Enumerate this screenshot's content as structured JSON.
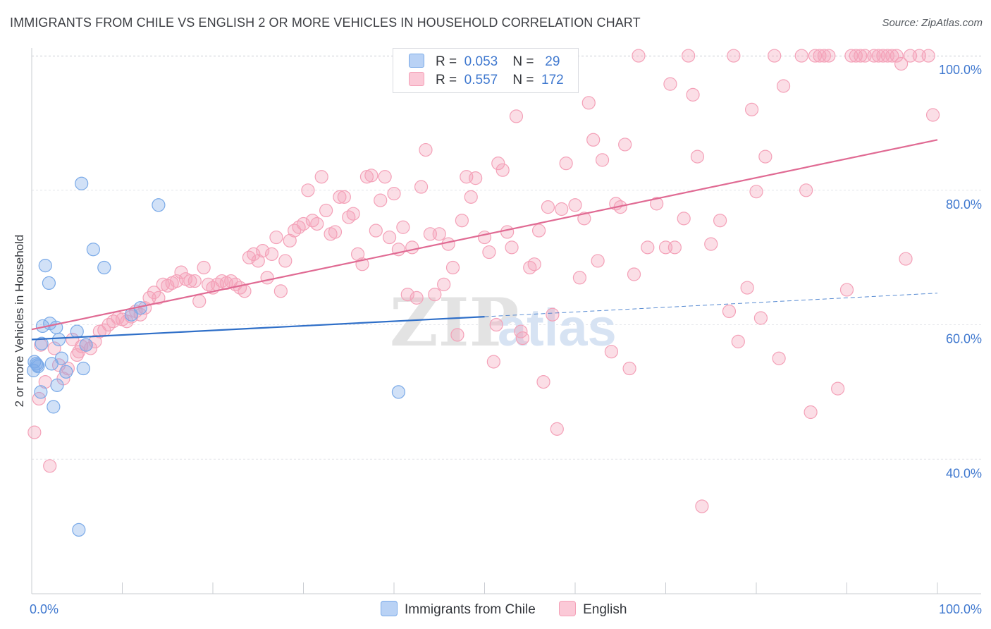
{
  "title": "IMMIGRANTS FROM CHILE VS ENGLISH 2 OR MORE VEHICLES IN HOUSEHOLD CORRELATION CHART",
  "source": "Source: ZipAtlas.com",
  "watermark": {
    "zip": "ZIP",
    "atlas": "atlas"
  },
  "legend_top": [
    {
      "r_label": "R =",
      "r_value": "0.053",
      "n_label": "N =",
      "n_value": "29"
    },
    {
      "r_label": "R =",
      "r_value": "0.557",
      "n_label": "N =",
      "n_value": "172"
    }
  ],
  "chart_data": {
    "type": "scatter",
    "xlabel": "",
    "ylabel": "2 or more Vehicles in Household",
    "xlim": [
      0,
      100
    ],
    "ylim": [
      20,
      102
    ],
    "x_tick_labels": [
      "0.0%",
      "100.0%"
    ],
    "y_ticks": [
      40,
      60,
      80,
      100
    ],
    "y_tick_labels": [
      "40.0%",
      "60.0%",
      "80.0%",
      "100.0%"
    ],
    "grid": true,
    "colors": {
      "chile": "#7aaae8",
      "english": "#f4a1b8",
      "chile_line": "#2f6fc8",
      "english_line": "#e06a93",
      "tick_label": "#3f78cf"
    },
    "series": [
      {
        "name": "Immigrants from Chile",
        "trend": {
          "x0": 0,
          "y0": 57.8,
          "x1": 50,
          "y1": 61.2,
          "dash_to_x": 100,
          "dash_to_y": 64.7
        },
        "points": [
          [
            0.2,
            53.2
          ],
          [
            0.3,
            54.5
          ],
          [
            0.5,
            54.2
          ],
          [
            0.6,
            54.0
          ],
          [
            0.7,
            53.8
          ],
          [
            1.0,
            50.0
          ],
          [
            1.1,
            57.2
          ],
          [
            1.2,
            59.8
          ],
          [
            1.5,
            68.8
          ],
          [
            1.9,
            66.2
          ],
          [
            2.0,
            60.2
          ],
          [
            2.2,
            54.2
          ],
          [
            2.4,
            47.8
          ],
          [
            2.7,
            59.6
          ],
          [
            2.8,
            51.0
          ],
          [
            3.0,
            57.8
          ],
          [
            3.3,
            55.0
          ],
          [
            3.8,
            53.0
          ],
          [
            5.0,
            59.0
          ],
          [
            5.2,
            29.5
          ],
          [
            5.5,
            81.0
          ],
          [
            5.7,
            53.5
          ],
          [
            6.0,
            57.0
          ],
          [
            6.8,
            71.2
          ],
          [
            8.0,
            68.5
          ],
          [
            11.0,
            61.5
          ],
          [
            12.0,
            62.5
          ],
          [
            14.0,
            77.8
          ],
          [
            40.5,
            50.0
          ]
        ]
      },
      {
        "name": "English",
        "trend": {
          "x0": 0,
          "y0": 59.3,
          "x1": 100,
          "y1": 87.5
        },
        "points": [
          [
            0.3,
            44.0
          ],
          [
            0.8,
            49.0
          ],
          [
            1.0,
            57.0
          ],
          [
            1.5,
            51.5
          ],
          [
            2.0,
            39.0
          ],
          [
            2.5,
            56.5
          ],
          [
            3.0,
            54.0
          ],
          [
            3.5,
            52.0
          ],
          [
            4.0,
            53.5
          ],
          [
            4.5,
            57.8
          ],
          [
            5.0,
            55.5
          ],
          [
            5.2,
            56.0
          ],
          [
            5.5,
            56.8
          ],
          [
            6.0,
            57.0
          ],
          [
            6.5,
            56.5
          ],
          [
            7.0,
            57.5
          ],
          [
            7.5,
            59.0
          ],
          [
            8.0,
            59.2
          ],
          [
            8.5,
            60.0
          ],
          [
            9.0,
            60.5
          ],
          [
            9.5,
            61.0
          ],
          [
            10.0,
            60.8
          ],
          [
            10.5,
            60.5
          ],
          [
            11.0,
            61.2
          ],
          [
            11.5,
            62.0
          ],
          [
            12.0,
            61.5
          ],
          [
            12.5,
            62.5
          ],
          [
            13.0,
            64.0
          ],
          [
            13.5,
            64.8
          ],
          [
            14.0,
            64.0
          ],
          [
            14.5,
            66.0
          ],
          [
            15.0,
            65.8
          ],
          [
            15.5,
            66.2
          ],
          [
            16.0,
            66.5
          ],
          [
            16.5,
            67.8
          ],
          [
            17.0,
            66.8
          ],
          [
            17.5,
            66.5
          ],
          [
            18.0,
            66.5
          ],
          [
            18.5,
            63.5
          ],
          [
            19.0,
            68.5
          ],
          [
            19.5,
            66.0
          ],
          [
            20.0,
            65.5
          ],
          [
            20.5,
            66.0
          ],
          [
            21.0,
            66.5
          ],
          [
            21.5,
            66.2
          ],
          [
            22.0,
            66.5
          ],
          [
            22.5,
            66.0
          ],
          [
            23.0,
            65.5
          ],
          [
            23.5,
            65.0
          ],
          [
            24.0,
            70.0
          ],
          [
            24.5,
            70.5
          ],
          [
            25.0,
            69.5
          ],
          [
            25.5,
            71.0
          ],
          [
            26.0,
            67.0
          ],
          [
            26.5,
            70.5
          ],
          [
            27.0,
            73.0
          ],
          [
            27.5,
            65.0
          ],
          [
            28.0,
            69.5
          ],
          [
            28.5,
            72.5
          ],
          [
            29.0,
            74.0
          ],
          [
            29.5,
            74.5
          ],
          [
            30.0,
            75.0
          ],
          [
            30.5,
            80.0
          ],
          [
            31.0,
            75.5
          ],
          [
            31.5,
            75.0
          ],
          [
            32.0,
            82.0
          ],
          [
            32.5,
            77.0
          ],
          [
            33.0,
            73.5
          ],
          [
            33.5,
            73.8
          ],
          [
            34.0,
            79.0
          ],
          [
            34.5,
            79.0
          ],
          [
            35.0,
            76.0
          ],
          [
            35.5,
            76.5
          ],
          [
            36.0,
            70.5
          ],
          [
            36.5,
            69.0
          ],
          [
            37.0,
            82.0
          ],
          [
            37.5,
            82.2
          ],
          [
            38.0,
            74.0
          ],
          [
            38.5,
            78.5
          ],
          [
            39.0,
            82.0
          ],
          [
            39.5,
            73.0
          ],
          [
            40.0,
            79.5
          ],
          [
            40.5,
            71.2
          ],
          [
            41.0,
            74.5
          ],
          [
            41.5,
            64.5
          ],
          [
            42.0,
            71.5
          ],
          [
            42.5,
            64.0
          ],
          [
            43.0,
            80.5
          ],
          [
            43.5,
            86.0
          ],
          [
            44.0,
            73.5
          ],
          [
            44.5,
            64.5
          ],
          [
            45.0,
            73.5
          ],
          [
            45.5,
            66.0
          ],
          [
            46.0,
            72.0
          ],
          [
            46.5,
            68.5
          ],
          [
            47.0,
            58.5
          ],
          [
            47.5,
            75.5
          ],
          [
            48.0,
            82.0
          ],
          [
            48.5,
            79.0
          ],
          [
            49.0,
            81.8
          ],
          [
            50.0,
            73.0
          ],
          [
            50.5,
            70.8
          ],
          [
            51.0,
            54.5
          ],
          [
            51.5,
            84.0
          ],
          [
            52.0,
            83.0
          ],
          [
            52.5,
            73.8
          ],
          [
            53.0,
            71.5
          ],
          [
            53.5,
            91.0
          ],
          [
            54.0,
            59.0
          ],
          [
            55.0,
            68.5
          ],
          [
            55.5,
            69.0
          ],
          [
            56.0,
            74.0
          ],
          [
            56.5,
            51.5
          ],
          [
            57.0,
            77.5
          ],
          [
            57.5,
            61.5
          ],
          [
            58.0,
            44.5
          ],
          [
            58.5,
            77.2
          ],
          [
            59.0,
            84.0
          ],
          [
            60.0,
            77.8
          ],
          [
            60.5,
            67.0
          ],
          [
            61.0,
            75.8
          ],
          [
            61.5,
            93.0
          ],
          [
            62.0,
            87.5
          ],
          [
            62.5,
            69.5
          ],
          [
            63.0,
            84.5
          ],
          [
            64.0,
            56.0
          ],
          [
            64.5,
            78.0
          ],
          [
            65.0,
            77.5
          ],
          [
            65.5,
            86.8
          ],
          [
            66.0,
            53.5
          ],
          [
            66.5,
            67.5
          ],
          [
            67.0,
            100.0
          ],
          [
            68.0,
            71.5
          ],
          [
            69.0,
            78.0
          ],
          [
            70.0,
            71.5
          ],
          [
            70.5,
            95.8
          ],
          [
            71.0,
            71.5
          ],
          [
            72.0,
            75.8
          ],
          [
            72.5,
            100.0
          ],
          [
            73.0,
            94.2
          ],
          [
            73.5,
            85.0
          ],
          [
            74.0,
            33.0
          ],
          [
            75.0,
            72.0
          ],
          [
            76.0,
            75.5
          ],
          [
            77.0,
            62.0
          ],
          [
            77.5,
            100.0
          ],
          [
            78.0,
            57.5
          ],
          [
            79.0,
            65.5
          ],
          [
            79.5,
            92.0
          ],
          [
            80.0,
            79.8
          ],
          [
            80.5,
            61.0
          ],
          [
            81.0,
            85.0
          ],
          [
            82.0,
            100.0
          ],
          [
            82.5,
            55.0
          ],
          [
            83.0,
            95.5
          ],
          [
            85.0,
            100.0
          ],
          [
            85.5,
            80.0
          ],
          [
            86.0,
            47.0
          ],
          [
            86.5,
            100.0
          ],
          [
            87.0,
            100.0
          ],
          [
            87.5,
            100.0
          ],
          [
            88.0,
            100.0
          ],
          [
            89.0,
            50.5
          ],
          [
            90.0,
            65.2
          ],
          [
            90.5,
            100.0
          ],
          [
            91.0,
            100.0
          ],
          [
            91.5,
            100.0
          ],
          [
            92.0,
            100.0
          ],
          [
            93.0,
            100.0
          ],
          [
            93.5,
            100.0
          ],
          [
            94.0,
            100.0
          ],
          [
            94.5,
            100.0
          ],
          [
            95.0,
            100.0
          ],
          [
            95.5,
            100.0
          ],
          [
            96.0,
            98.8
          ],
          [
            96.5,
            69.8
          ],
          [
            97.0,
            100.0
          ],
          [
            98.0,
            100.0
          ],
          [
            99.0,
            100.0
          ],
          [
            99.5,
            91.2
          ],
          [
            54.2,
            58.0
          ],
          [
            51.3,
            60.0
          ]
        ]
      }
    ]
  },
  "bottom_legend": [
    "Immigrants from Chile",
    "English"
  ]
}
